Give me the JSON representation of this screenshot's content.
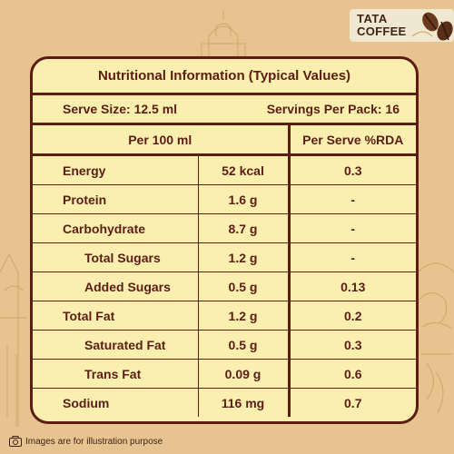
{
  "brand": {
    "line1": "TATA",
    "line2": "COFFEE"
  },
  "panel": {
    "title": "Nutritional Information (Typical Values)",
    "serve_size": "Serve Size: 12.5 ml",
    "servings_per_pack": "Servings Per Pack: 16",
    "col_per100": "Per 100 ml",
    "col_rda": "Per Serve %RDA",
    "rows": [
      {
        "label": "Energy",
        "value": "52 kcal",
        "rda": "0.3"
      },
      {
        "label": "Protein",
        "value": "1.6 g",
        "rda": "-"
      },
      {
        "label": "Carbohydrate",
        "value": "8.7 g",
        "rda": "-"
      },
      {
        "label": "Total Sugars",
        "value": "1.2 g",
        "rda": "-"
      },
      {
        "label": "Added Sugars",
        "value": "0.5 g",
        "rda": "0.13"
      },
      {
        "label": "Total Fat",
        "value": "1.2 g",
        "rda": "0.2"
      },
      {
        "label": "Saturated Fat",
        "value": "0.5 g",
        "rda": "0.3"
      },
      {
        "label": "Trans Fat",
        "value": "0.09 g",
        "rda": "0.6"
      },
      {
        "label": "Sodium",
        "value": "116 mg",
        "rda": "0.7"
      }
    ]
  },
  "footer": {
    "disclaimer": "Images are for illustration purpose"
  },
  "colors": {
    "background": "#e7c38f",
    "panel": "#fbefb0",
    "border": "#5b1d12"
  }
}
